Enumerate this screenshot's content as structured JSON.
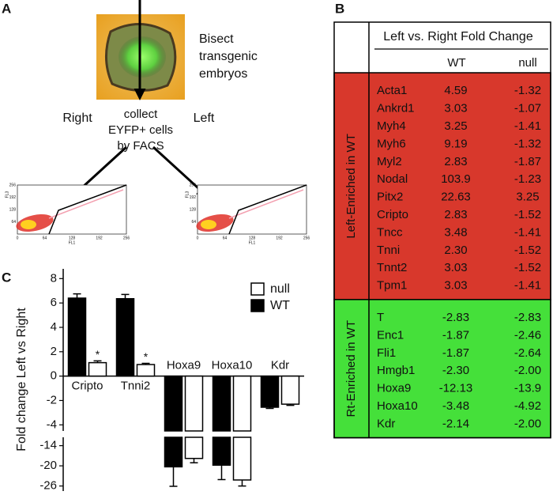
{
  "panel_labels": [
    "A",
    "B",
    "C"
  ],
  "diagram": {
    "bisect": [
      "Bisect",
      "transgenic",
      "embryos"
    ],
    "right": "Right",
    "left": "Left",
    "collect": [
      "collect",
      "EYFP+ cells",
      "by FACS"
    ],
    "facs": {
      "xlabel": "FL1",
      "ylabel": "FL3",
      "xlim": [
        0,
        256
      ],
      "ylim": [
        0,
        256
      ],
      "xticks": [
        0,
        64,
        128,
        192,
        256
      ],
      "yticks": [
        64,
        128,
        192,
        256
      ]
    }
  },
  "table": {
    "header": "Left vs. Right Fold Change",
    "columns": [
      "WT",
      "null"
    ],
    "groups": [
      {
        "label": "Left-Enriched in WT",
        "color": "#d8382c",
        "rows": [
          [
            "Acta1",
            "4.59",
            "-1.32"
          ],
          [
            "Ankrd1",
            "3.03",
            "-1.07"
          ],
          [
            "Myh4",
            "3.25",
            "-1.41"
          ],
          [
            "Myh6",
            "9.19",
            "-1.32"
          ],
          [
            "Myl2",
            "2.83",
            "-1.87"
          ],
          [
            "Nodal",
            "103.9",
            "-1.23"
          ],
          [
            "Pitx2",
            "22.63",
            "3.25"
          ],
          [
            "Cripto",
            "2.83",
            "-1.52"
          ],
          [
            "Tncc",
            "3.48",
            "-1.41"
          ],
          [
            "Tnni",
            "2.30",
            "-1.52"
          ],
          [
            "Tnnt2",
            "3.03",
            "-1.52"
          ],
          [
            "Tpm1",
            "3.03",
            "-1.41"
          ]
        ]
      },
      {
        "label": "Rt-Enriched in WT",
        "color": "#45e03a",
        "rows": [
          [
            "T",
            "-2.83",
            "-2.83"
          ],
          [
            "Enc1",
            "-1.87",
            "-2.46"
          ],
          [
            "Fli1",
            "-1.87",
            "-2.64"
          ],
          [
            "Hmgb1",
            "-2.30",
            "-2.00"
          ],
          [
            "Hoxa9",
            "-12.13",
            "-13.9"
          ],
          [
            "Hoxa10",
            "-3.48",
            "-4.92"
          ],
          [
            "Kdr",
            "-2.14",
            "-2.00"
          ]
        ]
      }
    ]
  },
  "chart_data": {
    "type": "bar",
    "ylabel": "Fold change Left vs Right",
    "categories": [
      "Cripto",
      "Tnni2",
      "Hoxa9",
      "Hoxa10",
      "Kdr"
    ],
    "series": [
      {
        "name": "null",
        "color": "#ffffff",
        "values": [
          1.1,
          0.95,
          -17.8,
          -24.2,
          -2.3
        ],
        "errors": [
          0.15,
          0.1,
          1.3,
          1.8,
          0.1
        ],
        "annotations": [
          "*",
          "*",
          null,
          null,
          null
        ]
      },
      {
        "name": "WT",
        "color": "#000000",
        "values": [
          6.4,
          6.35,
          -20.3,
          -19.8,
          -2.55
        ],
        "errors": [
          0.35,
          0.35,
          5.8,
          4.3,
          0.1
        ]
      }
    ],
    "segments": [
      {
        "ylim": [
          -4.5,
          8.8
        ],
        "yticks": [
          -4,
          -2,
          0,
          2,
          4,
          6,
          8
        ]
      },
      {
        "ylim": [
          -27.5,
          -11.5
        ],
        "yticks": [
          -14,
          -20,
          -26
        ]
      }
    ],
    "legend": "upper right"
  }
}
